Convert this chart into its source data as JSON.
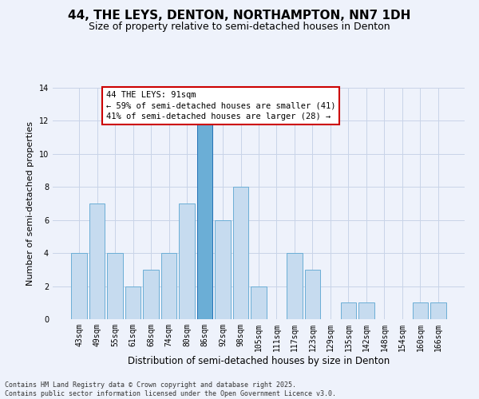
{
  "title": "44, THE LEYS, DENTON, NORTHAMPTON, NN7 1DH",
  "subtitle": "Size of property relative to semi-detached houses in Denton",
  "xlabel": "Distribution of semi-detached houses by size in Denton",
  "ylabel": "Number of semi-detached properties",
  "categories": [
    "43sqm",
    "49sqm",
    "55sqm",
    "61sqm",
    "68sqm",
    "74sqm",
    "80sqm",
    "86sqm",
    "92sqm",
    "98sqm",
    "105sqm",
    "111sqm",
    "117sqm",
    "123sqm",
    "129sqm",
    "135sqm",
    "142sqm",
    "148sqm",
    "154sqm",
    "160sqm",
    "166sqm"
  ],
  "values": [
    4,
    7,
    4,
    2,
    3,
    4,
    7,
    12,
    6,
    8,
    2,
    0,
    4,
    3,
    0,
    1,
    1,
    0,
    0,
    1,
    1
  ],
  "highlight_index": 7,
  "highlight_color": "#6baed6",
  "bar_color": "#c6dbef",
  "bar_edge_color": "#6baed6",
  "highlight_edge_color": "#2171b5",
  "bg_color": "#eef2fb",
  "grid_color": "#c8d4e8",
  "annotation_text": "44 THE LEYS: 91sqm\n← 59% of semi-detached houses are smaller (41)\n41% of semi-detached houses are larger (28) →",
  "annotation_box_color": "#ffffff",
  "annotation_box_edge": "#cc0000",
  "ylim": [
    0,
    14
  ],
  "yticks": [
    0,
    2,
    4,
    6,
    8,
    10,
    12,
    14
  ],
  "footer": "Contains HM Land Registry data © Crown copyright and database right 2025.\nContains public sector information licensed under the Open Government Licence v3.0.",
  "title_fontsize": 11,
  "subtitle_fontsize": 9,
  "xlabel_fontsize": 8.5,
  "ylabel_fontsize": 8,
  "tick_fontsize": 7,
  "annotation_fontsize": 7.5,
  "footer_fontsize": 6
}
